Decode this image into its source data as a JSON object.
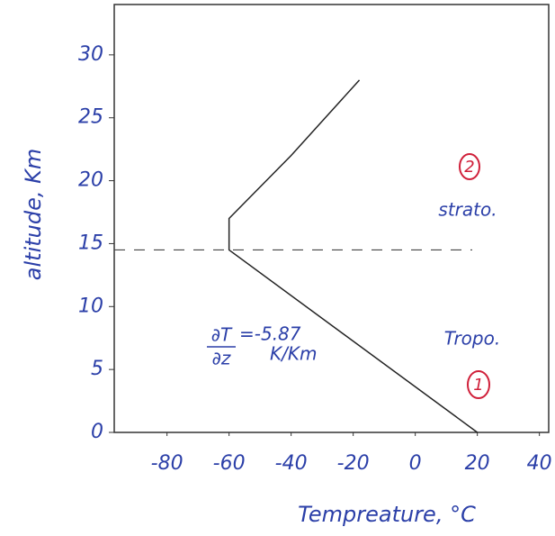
{
  "chart_data": {
    "type": "line",
    "x_label": "Tempreature, °C",
    "y_label": "altitude, Km",
    "x": [
      20,
      -60,
      -60,
      -40,
      -18
    ],
    "series": [
      {
        "color": "#222222",
        "values": [
          0,
          14.5,
          17,
          22,
          28
        ]
      }
    ],
    "xlim": [
      -97,
      43
    ],
    "ylim": [
      0,
      34
    ],
    "xticks": [
      -80,
      -60,
      -40,
      -20,
      0,
      20,
      40
    ],
    "yticks": [
      0,
      5,
      10,
      15,
      20,
      25,
      30
    ],
    "tropopause": 14.5,
    "annotations": {
      "gradient_top": "∂T",
      "gradient_bottom": "∂z",
      "gradient_value": "=-5.87",
      "gradient_unit": "K/Km",
      "tropo": "Tropo.",
      "strato": "strato.",
      "label_1": "1",
      "label_2": "2"
    }
  }
}
